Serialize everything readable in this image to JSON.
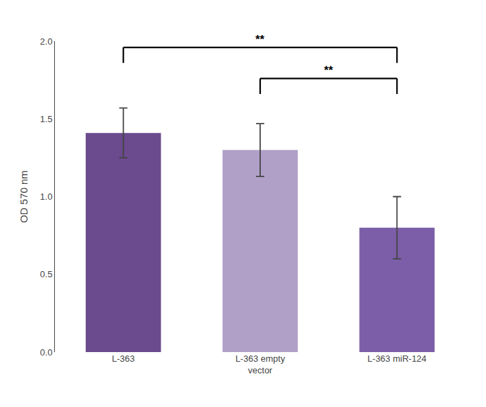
{
  "chart_data": {
    "type": "bar",
    "categories": [
      "L-363",
      "L-363 empty\nvector",
      "L-363 miR-124"
    ],
    "values": [
      1.41,
      1.3,
      0.8
    ],
    "errors": [
      0.16,
      0.17,
      0.2
    ],
    "colors": [
      "#6b4a8e",
      "#b0a0c8",
      "#7b5ea7"
    ],
    "ylabel": "OD 570 nm",
    "ylim": [
      0,
      2.0
    ],
    "yticks": [
      {
        "value": 0.0,
        "label": "0.0"
      },
      0.5,
      {
        "value": 1.0,
        "label": "1.0"
      },
      1.5,
      {
        "value": 2.0,
        "label": "2.0"
      }
    ],
    "grid": false,
    "significance": [
      {
        "bars": [
          0,
          2
        ],
        "label": "**",
        "y_top": 1.96,
        "drop": 0.1
      },
      {
        "bars": [
          1,
          2
        ],
        "label": "**",
        "y_top": 1.76,
        "drop": 0.1
      }
    ]
  }
}
